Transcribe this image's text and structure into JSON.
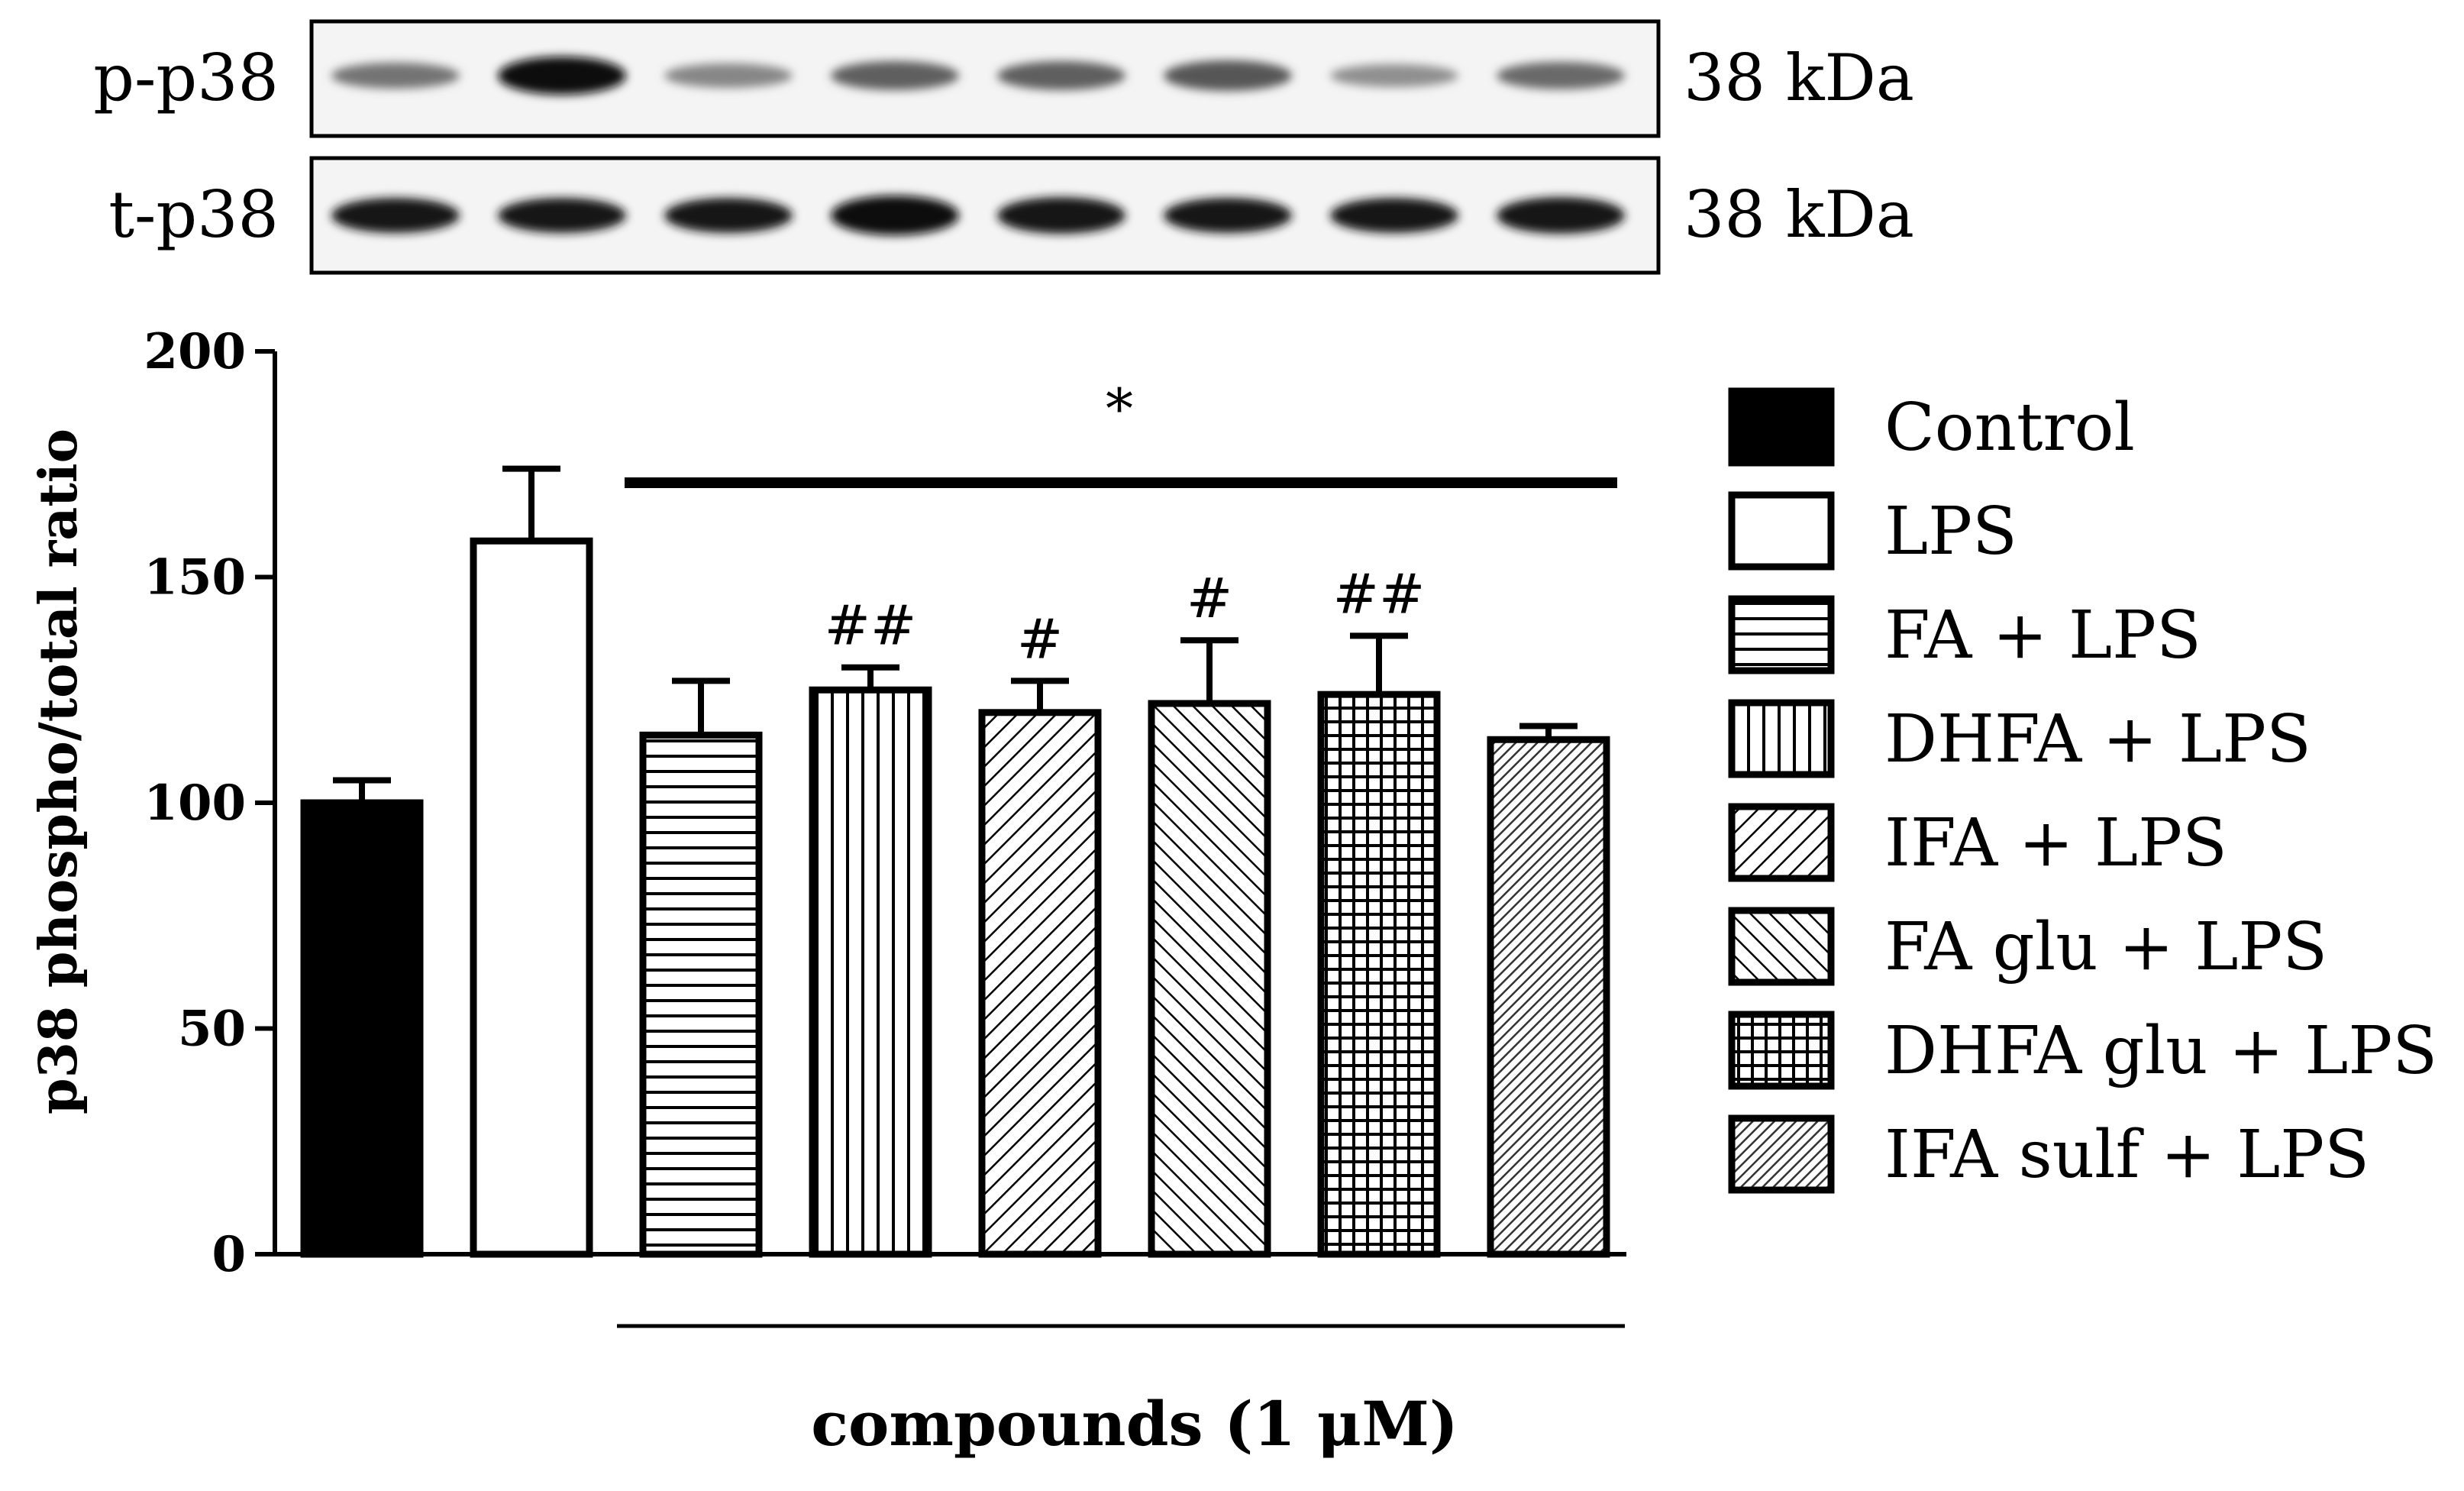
{
  "blots": [
    {
      "label": "p-p38",
      "size_label": "38 kDa",
      "band_intensity": [
        0.45,
        1.0,
        0.35,
        0.55,
        0.55,
        0.6,
        0.3,
        0.5
      ],
      "band_thickness": [
        0.5,
        0.9,
        0.45,
        0.6,
        0.6,
        0.65,
        0.4,
        0.55
      ]
    },
    {
      "label": "t-p38",
      "size_label": "38 kDa",
      "band_intensity": [
        0.95,
        0.95,
        0.95,
        1.0,
        0.95,
        0.95,
        0.95,
        0.95
      ],
      "band_thickness": [
        0.8,
        0.8,
        0.8,
        0.95,
        0.85,
        0.8,
        0.8,
        0.85
      ]
    }
  ],
  "chart_data": {
    "type": "bar",
    "ylabel": "p38 phospho/total ratio",
    "xlabel": "compounds (1 μM)",
    "ylim": [
      0,
      200
    ],
    "yticks": [
      0,
      50,
      100,
      150,
      200
    ],
    "categories": [
      "Control",
      "LPS",
      "FA + LPS",
      "DHFA + LPS",
      "IFA + LPS",
      "FA glu + LPS",
      "DHFA glu + LPS",
      "IFA sulf + LPS"
    ],
    "values": [
      100,
      158,
      115,
      125,
      120,
      122,
      124,
      114
    ],
    "errors": [
      5,
      16,
      12,
      5,
      7,
      14,
      13,
      3
    ],
    "patterns": [
      "solid-black",
      "white",
      "horizontal",
      "vertical",
      "diagonal-up",
      "diagonal-down",
      "grid",
      "dense-diagonal"
    ],
    "annotations": [
      "",
      "",
      "",
      "##",
      "#",
      "#",
      "##",
      ""
    ],
    "significance_bar": {
      "label": "*",
      "from_category": 2,
      "to_category": 7
    },
    "compounds_bracket": {
      "from_category": 2,
      "to_category": 7
    },
    "legend_position": "right"
  }
}
